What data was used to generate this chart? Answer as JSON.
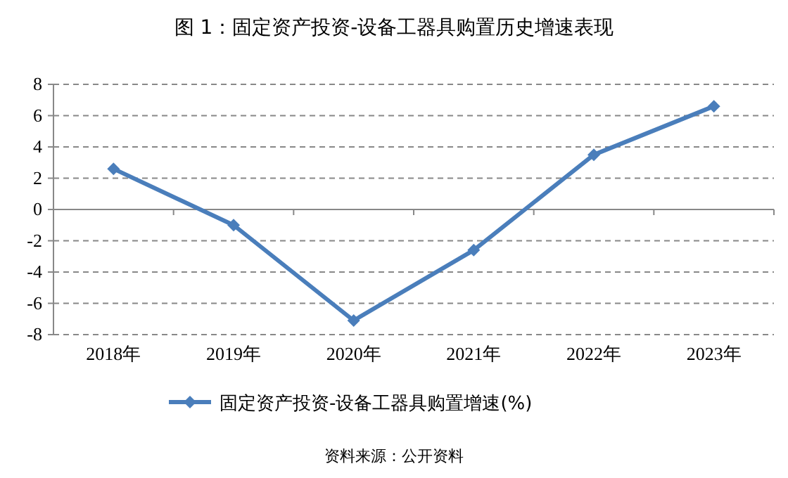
{
  "chart_data": {
    "type": "line",
    "title": "图 1：固定资产投资-设备工器具购置历史增速表现",
    "categories": [
      "2018年",
      "2019年",
      "2020年",
      "2021年",
      "2022年",
      "2023年"
    ],
    "series": [
      {
        "name": "固定资产投资-设备工器具购置增速(%)",
        "color": "#4a7ebb",
        "values": [
          2.6,
          -1.0,
          -7.1,
          -2.6,
          3.5,
          6.6
        ]
      }
    ],
    "ylim": [
      -8,
      8
    ],
    "yticks": [
      -8,
      -6,
      -4,
      -2,
      0,
      2,
      4,
      6,
      8
    ],
    "grid": "y",
    "legend": "bottom",
    "marker": "diamond",
    "line_style": "solid",
    "annotations": [
      "资料来源：公开资料"
    ]
  }
}
